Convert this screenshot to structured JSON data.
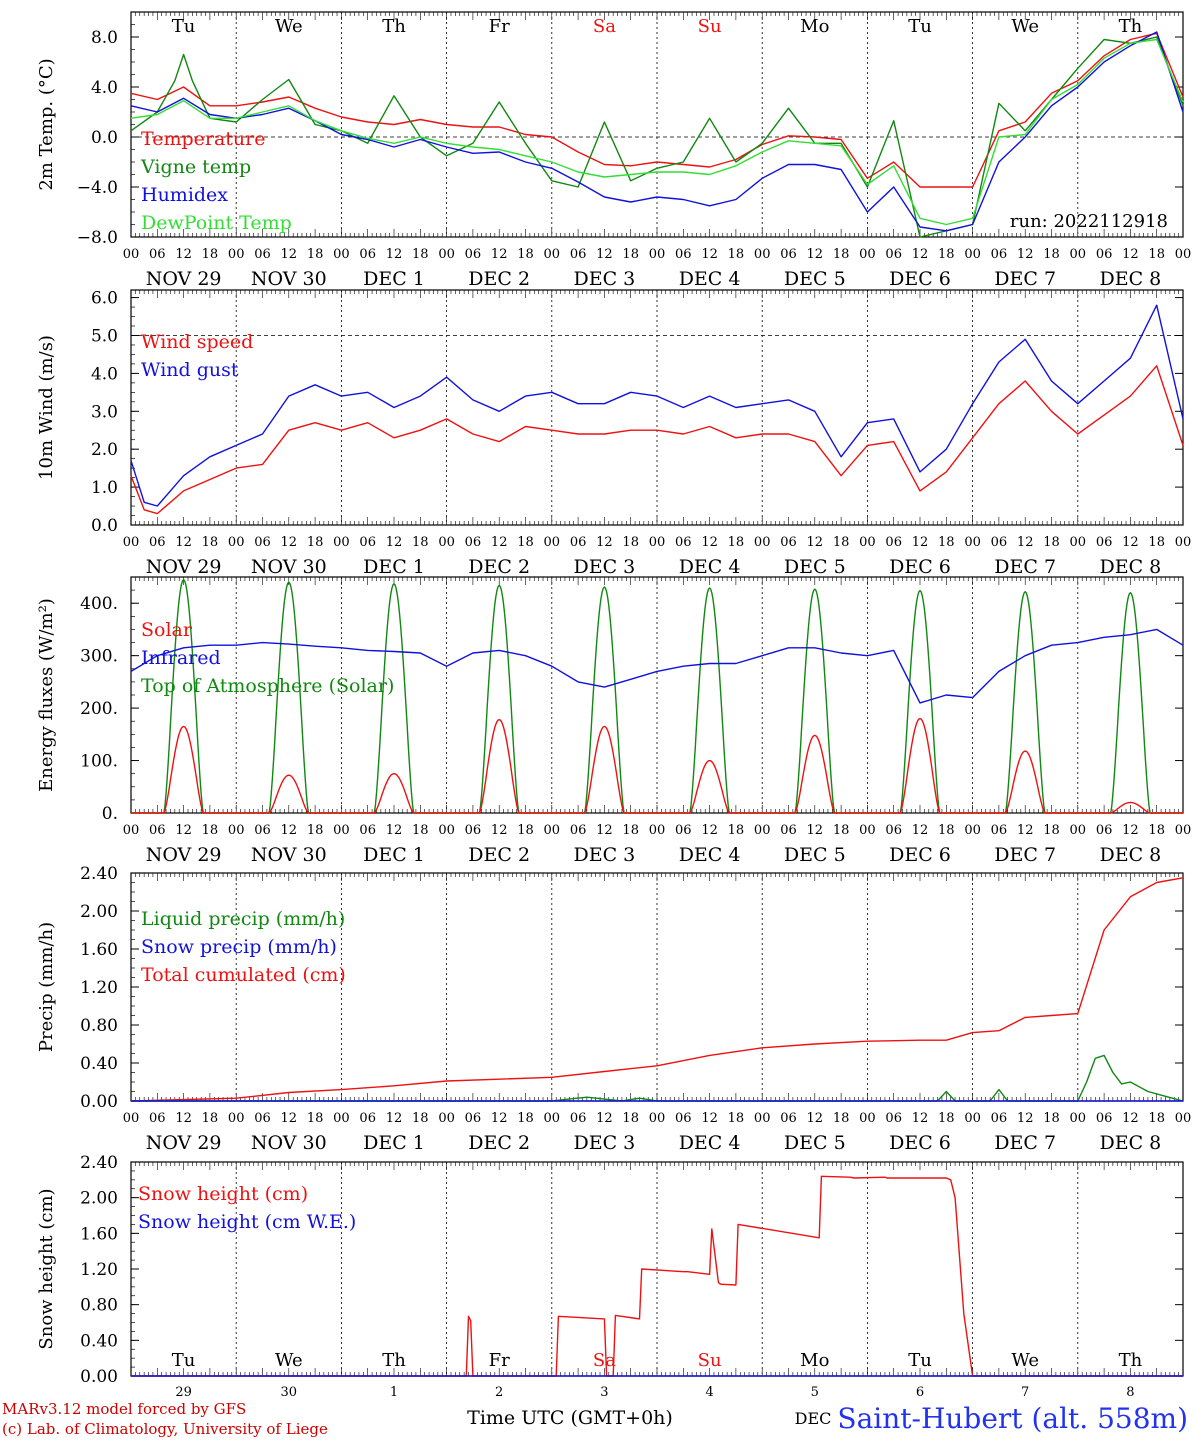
{
  "run_label": "run: 2022112918",
  "footer": {
    "credit_1": "MARv3.12 model forced by GFS",
    "credit_2": "(c) Lab. of Climatology, University of Liege",
    "xlabel": "Time UTC (GMT+0h)",
    "month": "DEC",
    "station": "Saint-Hubert (alt. 558m)"
  },
  "days": {
    "weekday": [
      "Tu",
      "We",
      "Th",
      "Fr",
      "Sa",
      "Su",
      "Mo",
      "Tu",
      "We",
      "Th"
    ],
    "weekend_flags": [
      false,
      false,
      false,
      false,
      true,
      true,
      false,
      false,
      false,
      false
    ],
    "date_labels": [
      "NOV 29",
      "NOV 30",
      "DEC  1",
      "DEC  2",
      "DEC  3",
      "DEC  4",
      "DEC  5",
      "DEC  6",
      "DEC  7",
      "DEC  8"
    ],
    "day_numbers": [
      "29",
      "30",
      "1",
      "2",
      "3",
      "4",
      "5",
      "6",
      "7",
      "8"
    ],
    "hour_ticks": [
      "00",
      "06",
      "12",
      "18"
    ],
    "final_hour": "00"
  },
  "colors": {
    "red": "#ee1111",
    "green": "#118811",
    "lightgreen": "#33dd33",
    "blue": "#1111dd",
    "weekend": "#ee1111"
  },
  "chart_data": [
    {
      "type": "line",
      "ylabel": "2m Temp. (°C)",
      "ylim": [
        -8,
        10
      ],
      "yticks": [
        "8.0",
        "4.0",
        "0.0",
        "−4.0",
        "−8.0"
      ],
      "ytick_values": [
        8,
        4,
        0,
        -4,
        -8
      ],
      "ref_line": 0,
      "x_unit": "hours since NOV 29 00 UTC",
      "legend": [
        "Temperature",
        "Vigne temp",
        "Humidex",
        "DewPoint Temp"
      ],
      "series": [
        {
          "name": "Temperature",
          "color": "red",
          "x": [
            0,
            6,
            12,
            18,
            24,
            30,
            36,
            42,
            48,
            54,
            60,
            66,
            72,
            78,
            84,
            90,
            96,
            102,
            108,
            114,
            120,
            126,
            132,
            138,
            144,
            150,
            156,
            162,
            168,
            174,
            180,
            186,
            192,
            198,
            204,
            210,
            216,
            222,
            228,
            234,
            240
          ],
          "y": [
            3.5,
            3.0,
            4.0,
            2.5,
            2.5,
            2.8,
            3.2,
            2.3,
            1.6,
            1.2,
            1.0,
            1.4,
            1.0,
            0.8,
            0.8,
            0.2,
            0.0,
            -1.2,
            -2.2,
            -2.3,
            -2.0,
            -2.2,
            -2.4,
            -1.8,
            -0.6,
            0.1,
            0.0,
            -0.2,
            -3.3,
            -2.0,
            -4.0,
            -4.0,
            -4.0,
            0.5,
            1.2,
            3.5,
            4.5,
            6.5,
            7.8,
            8.3,
            3.2
          ]
        },
        {
          "name": "Vigne temp",
          "color": "green",
          "x": [
            0,
            6,
            10,
            12,
            14,
            18,
            24,
            30,
            36,
            42,
            48,
            54,
            60,
            66,
            72,
            78,
            84,
            90,
            96,
            102,
            108,
            114,
            120,
            126,
            132,
            138,
            144,
            150,
            156,
            162,
            168,
            174,
            180,
            186,
            192,
            198,
            204,
            210,
            216,
            222,
            228,
            234,
            240
          ],
          "y": [
            0.5,
            2.0,
            4.5,
            6.6,
            4.5,
            1.5,
            1.2,
            3.0,
            4.6,
            1.0,
            0.5,
            -0.5,
            3.3,
            0.0,
            -1.5,
            -0.5,
            2.8,
            -0.5,
            -3.5,
            -4.0,
            1.2,
            -3.5,
            -2.5,
            -2.0,
            1.5,
            -2.0,
            -0.5,
            2.3,
            -0.5,
            -0.5,
            -4.0,
            1.3,
            -8.0,
            -7.5,
            -7.0,
            2.7,
            0.5,
            3.0,
            5.5,
            7.8,
            7.5,
            8.0,
            2.5
          ]
        },
        {
          "name": "Humidex",
          "color": "blue",
          "x": [
            0,
            6,
            12,
            18,
            24,
            30,
            36,
            42,
            48,
            54,
            60,
            66,
            72,
            78,
            84,
            90,
            96,
            102,
            108,
            114,
            120,
            126,
            132,
            138,
            144,
            150,
            156,
            162,
            168,
            174,
            180,
            186,
            192,
            198,
            204,
            210,
            216,
            222,
            228,
            234,
            240
          ],
          "y": [
            2.5,
            2.0,
            3.1,
            1.8,
            1.5,
            1.8,
            2.3,
            1.3,
            0.2,
            -0.2,
            -0.8,
            -0.2,
            -0.8,
            -1.3,
            -1.2,
            -2.0,
            -2.5,
            -3.6,
            -4.8,
            -5.2,
            -4.8,
            -5.0,
            -5.5,
            -5.0,
            -3.3,
            -2.2,
            -2.2,
            -2.6,
            -6.0,
            -4.0,
            -7.2,
            -7.5,
            -7.0,
            -2.0,
            0.0,
            2.5,
            4.0,
            6.0,
            7.3,
            8.4,
            2.0
          ]
        },
        {
          "name": "DewPoint Temp",
          "color": "lightgreen",
          "x": [
            0,
            6,
            12,
            18,
            24,
            30,
            36,
            42,
            48,
            54,
            60,
            66,
            72,
            78,
            84,
            90,
            96,
            102,
            108,
            114,
            120,
            126,
            132,
            138,
            144,
            150,
            156,
            162,
            168,
            174,
            180,
            186,
            192,
            198,
            204,
            210,
            216,
            222,
            228,
            234,
            240
          ],
          "y": [
            1.5,
            1.8,
            2.9,
            1.5,
            1.5,
            2.0,
            2.5,
            1.3,
            0.5,
            -0.1,
            -0.5,
            0.0,
            -0.5,
            -0.8,
            -1.0,
            -1.5,
            -2.0,
            -2.8,
            -3.2,
            -3.0,
            -2.8,
            -2.8,
            -3.0,
            -2.3,
            -1.2,
            -0.3,
            -0.5,
            -0.7,
            -3.8,
            -2.3,
            -6.5,
            -7.0,
            -6.5,
            0.0,
            0.2,
            3.0,
            4.2,
            6.3,
            7.5,
            7.8,
            2.8
          ]
        }
      ]
    },
    {
      "type": "line",
      "ylabel": "10m Wind (m/s)",
      "ylim": [
        0,
        6.2
      ],
      "yticks": [
        "6.0",
        "5.0",
        "4.0",
        "3.0",
        "2.0",
        "1.0",
        "0.0"
      ],
      "ytick_values": [
        6,
        5,
        4,
        3,
        2,
        1,
        0
      ],
      "ref_line": 5,
      "legend": [
        "Wind speed",
        "Wind gust"
      ],
      "series": [
        {
          "name": "Wind speed",
          "color": "red",
          "x": [
            0,
            3,
            6,
            9,
            12,
            18,
            24,
            30,
            36,
            42,
            48,
            54,
            60,
            66,
            72,
            78,
            84,
            90,
            96,
            102,
            108,
            114,
            120,
            126,
            132,
            138,
            144,
            150,
            156,
            162,
            168,
            174,
            180,
            186,
            192,
            198,
            204,
            210,
            216,
            222,
            228,
            234,
            240
          ],
          "y": [
            1.3,
            0.4,
            0.3,
            0.6,
            0.9,
            1.2,
            1.5,
            1.6,
            2.5,
            2.7,
            2.5,
            2.7,
            2.3,
            2.5,
            2.8,
            2.4,
            2.2,
            2.6,
            2.5,
            2.4,
            2.4,
            2.5,
            2.5,
            2.4,
            2.6,
            2.3,
            2.4,
            2.4,
            2.2,
            1.3,
            2.1,
            2.2,
            0.9,
            1.4,
            2.3,
            3.2,
            3.8,
            3.0,
            2.4,
            2.9,
            3.4,
            4.2,
            2.1
          ]
        },
        {
          "name": "Wind gust",
          "color": "blue",
          "x": [
            0,
            3,
            6,
            9,
            12,
            18,
            24,
            30,
            36,
            42,
            48,
            54,
            60,
            66,
            72,
            78,
            84,
            90,
            96,
            102,
            108,
            114,
            120,
            126,
            132,
            138,
            144,
            150,
            156,
            162,
            168,
            174,
            180,
            186,
            192,
            198,
            204,
            210,
            216,
            222,
            228,
            234,
            240
          ],
          "y": [
            1.7,
            0.6,
            0.5,
            0.9,
            1.3,
            1.8,
            2.1,
            2.4,
            3.4,
            3.7,
            3.4,
            3.5,
            3.1,
            3.4,
            3.9,
            3.3,
            3.0,
            3.4,
            3.5,
            3.2,
            3.2,
            3.5,
            3.4,
            3.1,
            3.4,
            3.1,
            3.2,
            3.3,
            3.0,
            1.8,
            2.7,
            2.8,
            1.4,
            2.0,
            3.2,
            4.3,
            4.9,
            3.8,
            3.2,
            3.8,
            4.4,
            5.8,
            2.8
          ]
        }
      ]
    },
    {
      "type": "line",
      "ylabel": "Energy fluxes (W/m²)",
      "ylim": [
        0,
        450
      ],
      "yticks": [
        "400.",
        "300.",
        "200.",
        "100.",
        "0."
      ],
      "ytick_values": [
        400,
        300,
        200,
        100,
        0
      ],
      "legend": [
        "Solar",
        "Infrared",
        "Top of Atmosphere (Solar)"
      ],
      "solar_peaks": [
        165,
        72,
        75,
        178,
        165,
        100,
        148,
        180,
        118,
        20
      ],
      "toa_peaks": [
        445,
        440,
        437,
        434,
        431,
        429,
        427,
        424,
        422,
        420
      ],
      "daylight_hours": [
        7.5,
        16.5
      ],
      "series": [
        {
          "name": "Infrared",
          "color": "blue",
          "x": [
            0,
            6,
            12,
            18,
            24,
            30,
            36,
            42,
            48,
            54,
            60,
            66,
            72,
            78,
            84,
            90,
            96,
            102,
            108,
            114,
            120,
            126,
            132,
            138,
            144,
            150,
            156,
            162,
            168,
            174,
            180,
            186,
            192,
            198,
            204,
            210,
            216,
            222,
            228,
            234,
            240
          ],
          "y": [
            270,
            300,
            315,
            320,
            320,
            325,
            322,
            318,
            315,
            310,
            308,
            305,
            280,
            305,
            310,
            300,
            280,
            250,
            240,
            255,
            270,
            280,
            285,
            285,
            300,
            315,
            315,
            305,
            300,
            310,
            210,
            225,
            220,
            270,
            300,
            320,
            325,
            335,
            340,
            350,
            320
          ]
        }
      ]
    },
    {
      "type": "line",
      "ylabel": "Precip (mm/h)",
      "ylim": [
        0,
        2.4
      ],
      "yticks": [
        "2.40",
        "2.00",
        "1.60",
        "1.20",
        "0.80",
        "0.40",
        "0.00"
      ],
      "ytick_values": [
        2.4,
        2.0,
        1.6,
        1.2,
        0.8,
        0.4,
        0.0
      ],
      "legend": [
        "Liquid precip (mm/h)",
        "Snow precip (mm/h)",
        "Total cumulated (cm)"
      ],
      "series": [
        {
          "name": "Total cumulated (cm)",
          "color": "red",
          "x": [
            0,
            24,
            36,
            48,
            60,
            72,
            84,
            96,
            108,
            120,
            132,
            144,
            156,
            168,
            180,
            186,
            192,
            198,
            204,
            210,
            216,
            222,
            228,
            234,
            240
          ],
          "y": [
            0.0,
            0.03,
            0.09,
            0.12,
            0.16,
            0.21,
            0.23,
            0.25,
            0.31,
            0.37,
            0.48,
            0.56,
            0.6,
            0.63,
            0.64,
            0.64,
            0.72,
            0.74,
            0.88,
            0.9,
            0.92,
            1.8,
            2.15,
            2.3,
            2.35
          ]
        },
        {
          "name": "Liquid precip (mm/h)",
          "color": "green",
          "x": [
            0,
            96,
            100,
            104,
            108,
            112,
            116,
            120,
            184,
            186,
            188,
            196,
            198,
            200,
            216,
            218,
            220,
            222,
            224,
            226,
            228,
            232,
            236,
            240
          ],
          "y": [
            0,
            0,
            0.02,
            0.04,
            0.02,
            0.0,
            0.03,
            0.0,
            0,
            0.1,
            0.0,
            0,
            0.12,
            0.0,
            0,
            0.2,
            0.45,
            0.48,
            0.3,
            0.18,
            0.2,
            0.1,
            0.05,
            0
          ]
        },
        {
          "name": "Snow precip (mm/h)",
          "color": "blue",
          "x": [
            0,
            240
          ],
          "y": [
            0,
            0
          ]
        }
      ]
    },
    {
      "type": "line",
      "ylabel": "Snow height (cm)",
      "ylim": [
        0,
        2.4
      ],
      "yticks": [
        "2.40",
        "2.00",
        "1.60",
        "1.20",
        "0.80",
        "0.40",
        "0.00"
      ],
      "ytick_values": [
        2.4,
        2.0,
        1.6,
        1.2,
        0.8,
        0.4,
        0.0
      ],
      "legend": [
        "Snow height (cm)",
        "Snow height (cm W.E.)"
      ],
      "series": [
        {
          "name": "Snow height (cm)",
          "color": "red",
          "x": [
            0,
            76.5,
            77,
            77.5,
            78,
            97,
            97.5,
            108,
            108.5,
            110,
            110.5,
            116,
            116.5,
            126,
            127,
            132,
            132.5,
            134,
            134.5,
            138,
            138.5,
            157,
            157.5,
            164,
            165,
            172,
            172.5,
            186,
            187,
            188,
            190,
            192,
            238,
            240
          ],
          "y": [
            0,
            0,
            0.67,
            0.62,
            0,
            0,
            0.67,
            0.64,
            0,
            0,
            0.68,
            0.64,
            1.2,
            1.17,
            1.17,
            1.14,
            1.65,
            1.05,
            1.03,
            1.02,
            1.7,
            1.55,
            2.24,
            2.23,
            2.22,
            2.23,
            2.22,
            2.22,
            2.2,
            2.0,
            0.7,
            0,
            0,
            0
          ]
        },
        {
          "name": "Snow height (cm W.E.)",
          "color": "blue",
          "x": [
            0,
            240
          ],
          "y": [
            0,
            0
          ]
        }
      ]
    }
  ]
}
